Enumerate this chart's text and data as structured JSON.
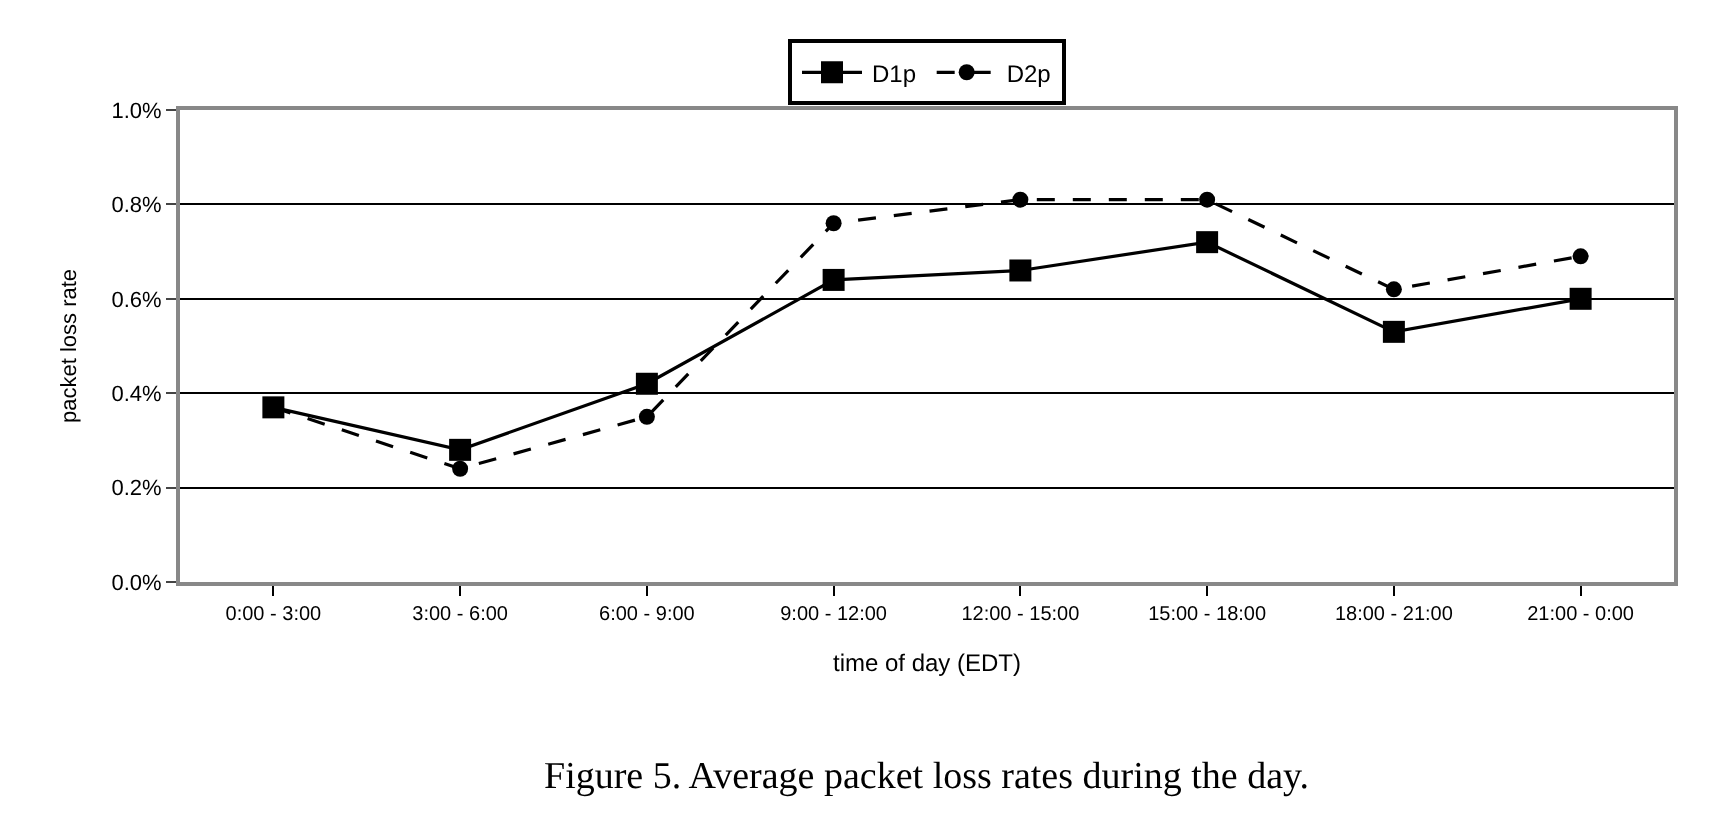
{
  "chart_data": {
    "type": "line",
    "xlabel": "time of day (EDT)",
    "ylabel": "packet loss rate",
    "categories": [
      "0:00 - 3:00",
      "3:00 - 6:00",
      "6:00 - 9:00",
      "9:00 - 12:00",
      "12:00 - 15:00",
      "15:00 - 18:00",
      "18:00 - 21:00",
      "21:00 - 0:00"
    ],
    "series": [
      {
        "name": "D1p",
        "color": "#000000",
        "marker": "square",
        "line_style": "solid",
        "values": [
          0.37,
          0.28,
          0.42,
          0.64,
          0.66,
          0.72,
          0.53,
          0.6
        ]
      },
      {
        "name": "D2p",
        "color": "#000000",
        "marker": "circle",
        "line_style": "dashed",
        "values": [
          0.37,
          0.24,
          0.35,
          0.76,
          0.81,
          0.81,
          0.62,
          0.69
        ]
      }
    ],
    "ylim": [
      0,
      1.0
    ],
    "yticks": [
      {
        "value": 0,
        "label": "0.0%"
      },
      {
        "value": 0.2,
        "label": "0.2%"
      },
      {
        "value": 0.4,
        "label": "0.4%"
      },
      {
        "value": 0.6,
        "label": "0.6%"
      },
      {
        "value": 0.8,
        "label": "0.8%"
      },
      {
        "value": 1.0,
        "label": "1.0%"
      }
    ],
    "grid": "y",
    "legend": "top",
    "annotations": [
      "Figure 5. Average packet loss rates during the day."
    ]
  }
}
